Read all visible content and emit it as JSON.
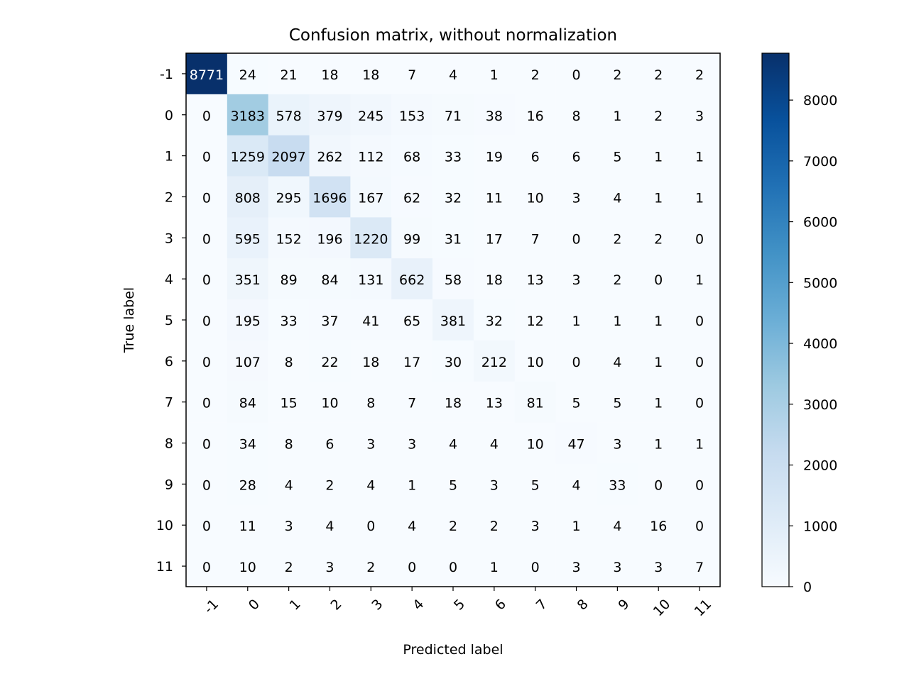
{
  "chart_data": {
    "type": "heatmap",
    "title": "Confusion matrix, without normalization",
    "xlabel": "Predicted label",
    "ylabel": "True label",
    "x_categories": [
      "-1",
      "0",
      "1",
      "2",
      "3",
      "4",
      "5",
      "6",
      "7",
      "8",
      "9",
      "10",
      "11"
    ],
    "y_categories": [
      "-1",
      "0",
      "1",
      "2",
      "3",
      "4",
      "5",
      "6",
      "7",
      "8",
      "9",
      "10",
      "11"
    ],
    "matrix": [
      [
        8771,
        24,
        21,
        18,
        18,
        7,
        4,
        1,
        2,
        0,
        2,
        2,
        2
      ],
      [
        0,
        3183,
        578,
        379,
        245,
        153,
        71,
        38,
        16,
        8,
        1,
        2,
        3
      ],
      [
        0,
        1259,
        2097,
        262,
        112,
        68,
        33,
        19,
        6,
        6,
        5,
        1,
        1
      ],
      [
        0,
        808,
        295,
        1696,
        167,
        62,
        32,
        11,
        10,
        3,
        4,
        1,
        1
      ],
      [
        0,
        595,
        152,
        196,
        1220,
        99,
        31,
        17,
        7,
        0,
        2,
        2,
        0
      ],
      [
        0,
        351,
        89,
        84,
        131,
        662,
        58,
        18,
        13,
        3,
        2,
        0,
        1
      ],
      [
        0,
        195,
        33,
        37,
        41,
        65,
        381,
        32,
        12,
        1,
        1,
        1,
        0
      ],
      [
        0,
        107,
        8,
        22,
        18,
        17,
        30,
        212,
        10,
        0,
        4,
        1,
        0
      ],
      [
        0,
        84,
        15,
        10,
        8,
        7,
        18,
        13,
        81,
        5,
        5,
        1,
        0
      ],
      [
        0,
        34,
        8,
        6,
        3,
        3,
        4,
        4,
        10,
        47,
        3,
        1,
        1
      ],
      [
        0,
        28,
        4,
        2,
        4,
        1,
        5,
        3,
        5,
        4,
        33,
        0,
        0
      ],
      [
        0,
        11,
        3,
        4,
        0,
        4,
        2,
        2,
        3,
        1,
        4,
        16,
        0
      ],
      [
        0,
        10,
        2,
        3,
        2,
        0,
        0,
        1,
        0,
        3,
        3,
        3,
        7
      ]
    ],
    "colormap": "Blues",
    "colorbar": {
      "range": [
        0,
        8771
      ],
      "ticks": [
        0,
        1000,
        2000,
        3000,
        4000,
        5000,
        6000,
        7000,
        8000
      ]
    },
    "x_tick_rotation_deg": 45,
    "text_color_dark": "#000000",
    "text_color_light": "#ffffff",
    "grid": false
  }
}
